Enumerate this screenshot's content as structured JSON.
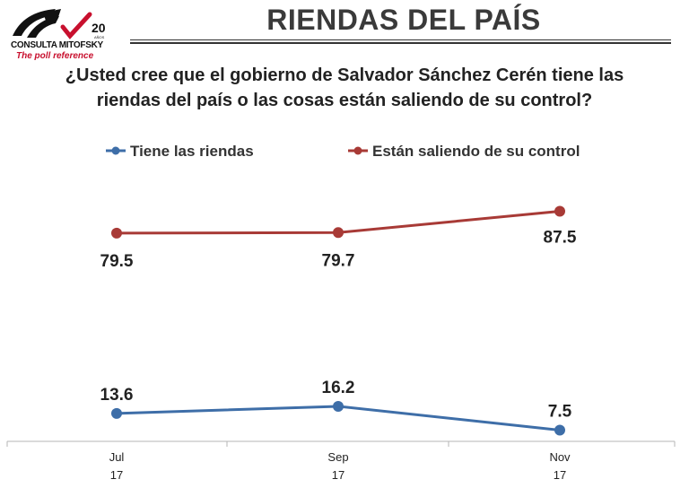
{
  "logo": {
    "name": "CONSULTA MITOFSKY",
    "tagline": "The poll reference",
    "badge": "20",
    "badge_sub": "AÑOS"
  },
  "header": {
    "title": "RIENDAS DEL PAÍS",
    "question_line1": "¿Usted cree que el gobierno de Salvador Sánchez Cerén tiene las",
    "question_line2": "riendas del país o las cosas están saliendo de su control?"
  },
  "chart_data": {
    "type": "line",
    "categories": [
      {
        "month": "Jul",
        "year": "17"
      },
      {
        "month": "Sep",
        "year": "17"
      },
      {
        "month": "Nov",
        "year": "17"
      }
    ],
    "series": [
      {
        "name": "Tiene las riendas",
        "color": "#3e6ea8",
        "values": [
          13.6,
          16.2,
          7.5
        ],
        "labels": [
          "13.6",
          "16.2",
          "7.5"
        ]
      },
      {
        "name": "Están saliendo de su control",
        "color": "#a83a36",
        "values": [
          79.5,
          79.7,
          87.5
        ],
        "labels": [
          "79.5",
          "79.7",
          "87.5"
        ]
      }
    ],
    "ylim": [
      0,
      100
    ],
    "grid": false,
    "legend_position": "top"
  }
}
